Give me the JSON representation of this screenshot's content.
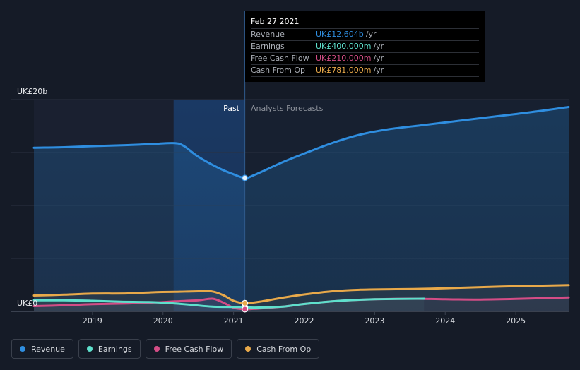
{
  "chart_data": {
    "type": "line",
    "y_top_label": "UK£20b",
    "y_bottom_label": "UK£0",
    "ylim": [
      0,
      20
    ],
    "xlim": [
      2018.17,
      2025.75
    ],
    "x_ticks": [
      "2019",
      "2020",
      "2021",
      "2022",
      "2023",
      "2024",
      "2025"
    ],
    "x_tick_values": [
      2019,
      2020,
      2021,
      2022,
      2023,
      2024,
      2025
    ],
    "divider_x": 2021.16,
    "highlight_start": 2020.15,
    "past_label": "Past",
    "forecast_label": "Analysts Forecasts",
    "grid": true,
    "series": [
      {
        "name": "Revenue",
        "color": "#2f8ee0",
        "points": [
          [
            2018.17,
            15.45
          ],
          [
            2018.6,
            15.5
          ],
          [
            2019.0,
            15.6
          ],
          [
            2019.5,
            15.7
          ],
          [
            2019.9,
            15.82
          ],
          [
            2020.17,
            15.88
          ],
          [
            2020.3,
            15.6
          ],
          [
            2020.5,
            14.6
          ],
          [
            2020.8,
            13.5
          ],
          [
            2021.0,
            12.95
          ],
          [
            2021.16,
            12.6
          ],
          [
            2021.3,
            12.9
          ],
          [
            2021.7,
            14.1
          ],
          [
            2022.0,
            14.9
          ],
          [
            2022.4,
            15.9
          ],
          [
            2022.8,
            16.7
          ],
          [
            2023.2,
            17.2
          ],
          [
            2023.7,
            17.6
          ],
          [
            2024.2,
            18.0
          ],
          [
            2024.7,
            18.4
          ],
          [
            2025.2,
            18.8
          ],
          [
            2025.75,
            19.3
          ]
        ]
      },
      {
        "name": "Earnings",
        "color": "#5ee0cc",
        "points": [
          [
            2018.17,
            1.05
          ],
          [
            2018.6,
            1.05
          ],
          [
            2019.0,
            1.0
          ],
          [
            2019.4,
            0.92
          ],
          [
            2019.8,
            0.88
          ],
          [
            2020.17,
            0.75
          ],
          [
            2020.4,
            0.62
          ],
          [
            2020.7,
            0.45
          ],
          [
            2021.0,
            0.42
          ],
          [
            2021.16,
            0.4
          ],
          [
            2021.3,
            0.36
          ],
          [
            2021.7,
            0.45
          ],
          [
            2022.0,
            0.7
          ],
          [
            2022.5,
            1.0
          ],
          [
            2023.0,
            1.15
          ],
          [
            2023.7,
            1.2
          ]
        ]
      },
      {
        "name": "Free Cash Flow",
        "color": "#d44d86",
        "points": [
          [
            2018.17,
            0.5
          ],
          [
            2018.6,
            0.58
          ],
          [
            2019.0,
            0.68
          ],
          [
            2019.5,
            0.75
          ],
          [
            2019.9,
            0.85
          ],
          [
            2020.17,
            0.95
          ],
          [
            2020.5,
            1.05
          ],
          [
            2020.7,
            1.2
          ],
          [
            2020.85,
            0.85
          ],
          [
            2021.0,
            0.35
          ],
          [
            2021.16,
            0.21
          ],
          [
            2021.3,
            0.25
          ],
          [
            2021.7,
            0.45
          ],
          [
            2022.0,
            0.7
          ],
          [
            2022.5,
            1.0
          ],
          [
            2023.0,
            1.15
          ],
          [
            2023.5,
            1.2
          ],
          [
            2024.0,
            1.15
          ],
          [
            2024.5,
            1.12
          ],
          [
            2025.0,
            1.18
          ],
          [
            2025.75,
            1.32
          ]
        ]
      },
      {
        "name": "Cash From Op",
        "color": "#e8a94a",
        "points": [
          [
            2018.17,
            1.5
          ],
          [
            2018.6,
            1.58
          ],
          [
            2019.0,
            1.68
          ],
          [
            2019.5,
            1.7
          ],
          [
            2019.9,
            1.82
          ],
          [
            2020.17,
            1.85
          ],
          [
            2020.5,
            1.9
          ],
          [
            2020.7,
            1.88
          ],
          [
            2020.85,
            1.55
          ],
          [
            2021.0,
            1.0
          ],
          [
            2021.16,
            0.78
          ],
          [
            2021.4,
            0.95
          ],
          [
            2021.7,
            1.3
          ],
          [
            2022.0,
            1.6
          ],
          [
            2022.4,
            1.9
          ],
          [
            2022.8,
            2.05
          ],
          [
            2023.3,
            2.1
          ],
          [
            2023.8,
            2.15
          ],
          [
            2024.3,
            2.25
          ],
          [
            2024.8,
            2.35
          ],
          [
            2025.3,
            2.42
          ],
          [
            2025.75,
            2.48
          ]
        ]
      }
    ],
    "tooltip_marker_x": 2021.16
  },
  "tooltip": {
    "date": "Feb 27 2021",
    "unit": "/yr",
    "rows": [
      {
        "label": "Revenue",
        "value": "UK£12.604b",
        "color": "#2f8ee0"
      },
      {
        "label": "Earnings",
        "value": "UK£400.000m",
        "color": "#5ee0cc"
      },
      {
        "label": "Free Cash Flow",
        "value": "UK£210.000m",
        "color": "#d44d86"
      },
      {
        "label": "Cash From Op",
        "value": "UK£781.000m",
        "color": "#e8a94a"
      }
    ]
  },
  "legend": [
    {
      "label": "Revenue",
      "color": "#2f8ee0"
    },
    {
      "label": "Earnings",
      "color": "#5ee0cc"
    },
    {
      "label": "Free Cash Flow",
      "color": "#d44d86"
    },
    {
      "label": "Cash From Op",
      "color": "#e8a94a"
    }
  ]
}
